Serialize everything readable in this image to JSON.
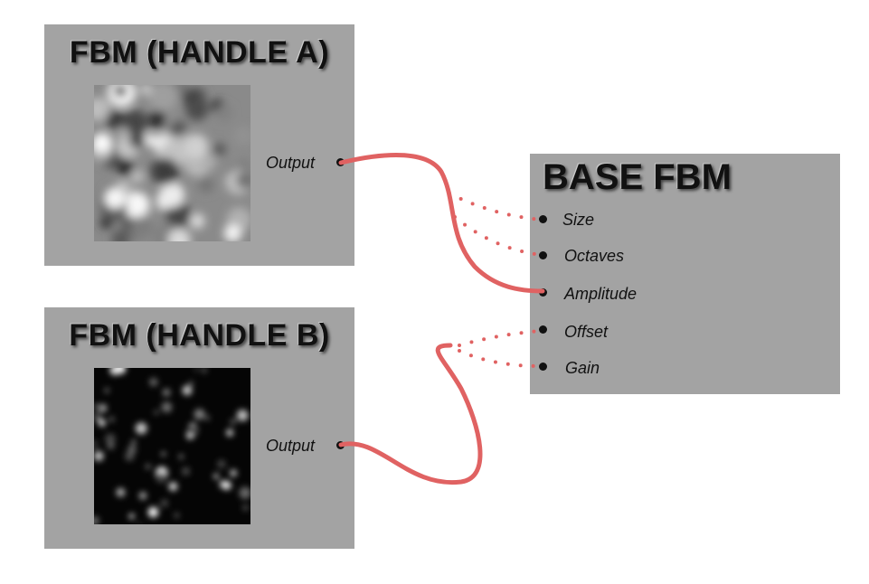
{
  "nodes": {
    "handle_a": {
      "title": "FBM (HANDLE A)",
      "output_label": "Output",
      "preview_style": "light-cloudy-noise"
    },
    "handle_b": {
      "title": "FBM (HANDLE B)",
      "output_label": "Output",
      "preview_style": "dark-sparse-noise"
    },
    "base": {
      "title": "BASE FBM",
      "inputs": [
        "Size",
        "Octaves",
        "Amplitude",
        "Offset",
        "Gain"
      ]
    }
  },
  "connections": [
    {
      "from": "FBM (HANDLE A).Output",
      "to": "BASE FBM.Amplitude",
      "style": "solid"
    },
    {
      "from": "FBM (HANDLE A).Output",
      "to": "BASE FBM.Size",
      "style": "dotted"
    },
    {
      "from": "FBM (HANDLE A).Output",
      "to": "BASE FBM.Octaves",
      "style": "dotted"
    },
    {
      "from": "FBM (HANDLE B).Output",
      "to": "BASE FBM.Offset",
      "style": "dotted"
    },
    {
      "from": "FBM (HANDLE B).Output",
      "to": "BASE FBM.Gain",
      "style": "dotted"
    }
  ],
  "colors": {
    "node_bg": "#a3a3a3",
    "wire": "#e06262",
    "text": "#111111"
  }
}
